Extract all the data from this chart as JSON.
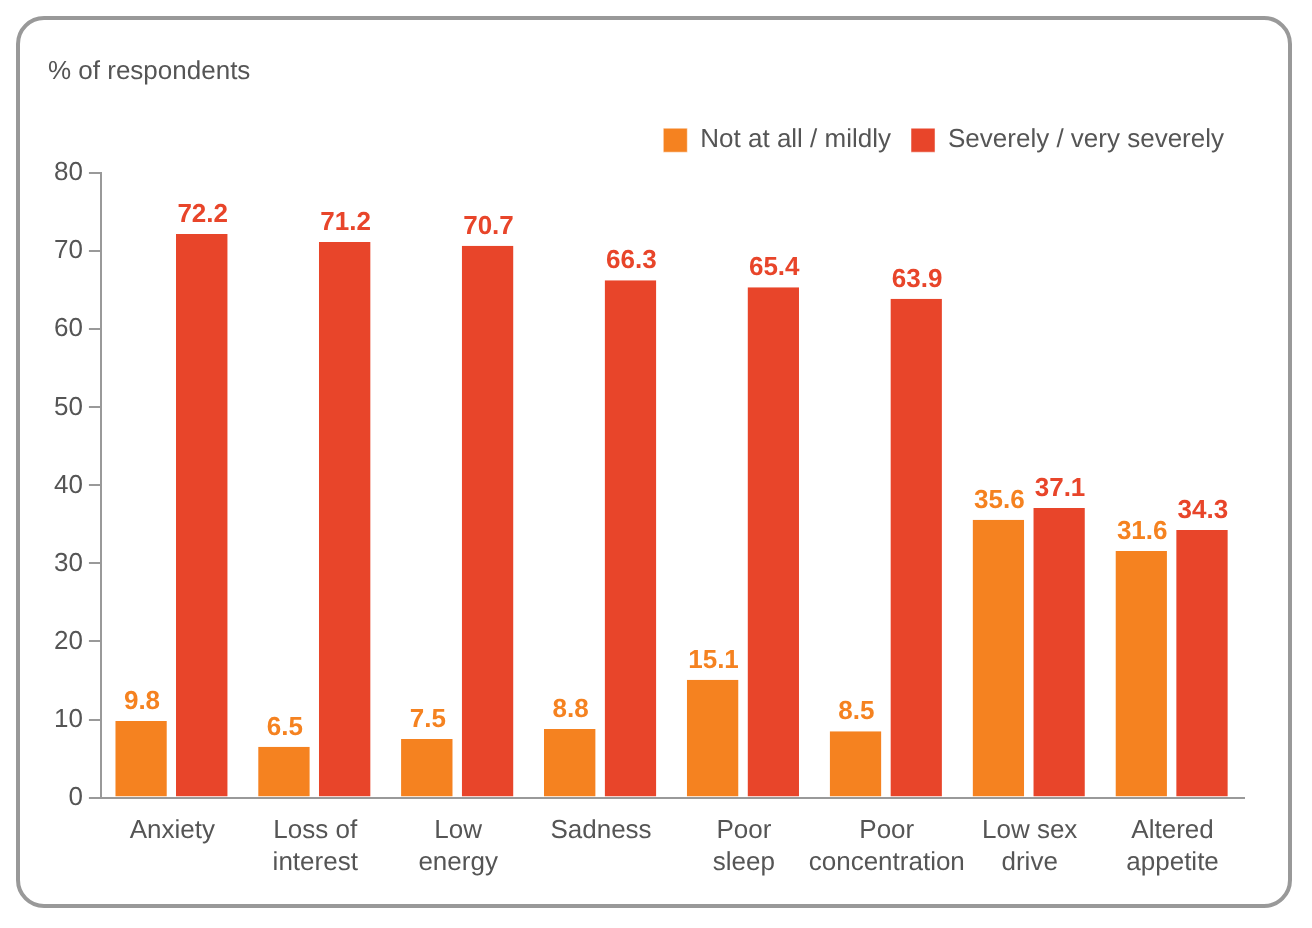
{
  "chart_data": {
    "type": "bar",
    "ylabel": "% of respondents",
    "categories": [
      "Anxiety",
      "Loss of\ninterest",
      "Low\nenergy",
      "Sadness",
      "Poor\nsleep",
      "Poor\nconcentration",
      "Low sex\ndrive",
      "Altered\nappetite"
    ],
    "series": [
      {
        "name": "Not at all / mildly",
        "color": "#f58220",
        "values": [
          9.8,
          6.5,
          7.5,
          8.8,
          15.1,
          8.5,
          35.6,
          31.6
        ]
      },
      {
        "name": "Severely / very severely",
        "color": "#e8452a",
        "values": [
          72.2,
          71.2,
          70.7,
          66.3,
          65.4,
          63.9,
          37.1,
          34.3
        ]
      }
    ],
    "ylim": [
      0,
      80
    ],
    "yticks": [
      0,
      10,
      20,
      30,
      40,
      50,
      60,
      70,
      80
    ],
    "grid": false,
    "legend": "top right",
    "data_labels": true
  }
}
